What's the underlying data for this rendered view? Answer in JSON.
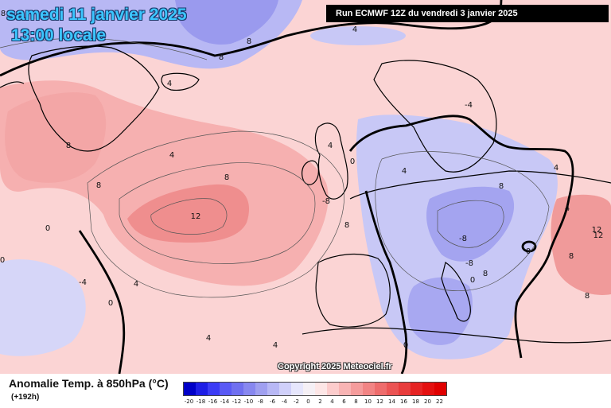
{
  "header": {
    "date": "samedi 11 janvier 2025",
    "time": "13:00 locale",
    "run": "Run ECMWF 12Z du vendredi 3 janvier 2025"
  },
  "copyright": "Copyright 2025 Meteociel.fr",
  "legend": {
    "title": "Anomalie Temp. à 850hPa (°C)",
    "lead": "(+192h)",
    "ticks": [
      "-20",
      "-18",
      "-16",
      "-14",
      "-12",
      "-10",
      "-8",
      "-6",
      "-4",
      "-2",
      "0",
      "2",
      "4",
      "6",
      "8",
      "10",
      "12",
      "14",
      "16",
      "18",
      "20",
      "22"
    ],
    "colors": [
      "#0000c8",
      "#1e1ee6",
      "#3c3cf5",
      "#5a5af5",
      "#7070f0",
      "#8888f0",
      "#a0a0f0",
      "#b8b8f5",
      "#d0d0fa",
      "#e6e6fc",
      "#f5f0f5",
      "#fde6e6",
      "#fccccc",
      "#f8b4b4",
      "#f59c9c",
      "#f28484",
      "#ee6c6c",
      "#eb5454",
      "#e83c3c",
      "#e62424",
      "#e41010",
      "#e00000"
    ]
  },
  "contour_labels": [
    "8",
    "8",
    "4",
    "8",
    "8",
    "8",
    "4",
    "8",
    "12",
    "0",
    "4",
    "8",
    "0",
    "4",
    "4",
    "-4",
    "4",
    "0",
    "0",
    "4",
    "4",
    "4",
    "-4",
    "8",
    "0",
    "4",
    "8",
    "12",
    "12",
    "8",
    "8",
    "-8",
    "-8",
    "-8",
    "0",
    "0"
  ],
  "colors": {
    "anomaly_warm": "#f7b9b9",
    "anomaly_cold": "#c8c8f6",
    "coast": "#000000"
  }
}
